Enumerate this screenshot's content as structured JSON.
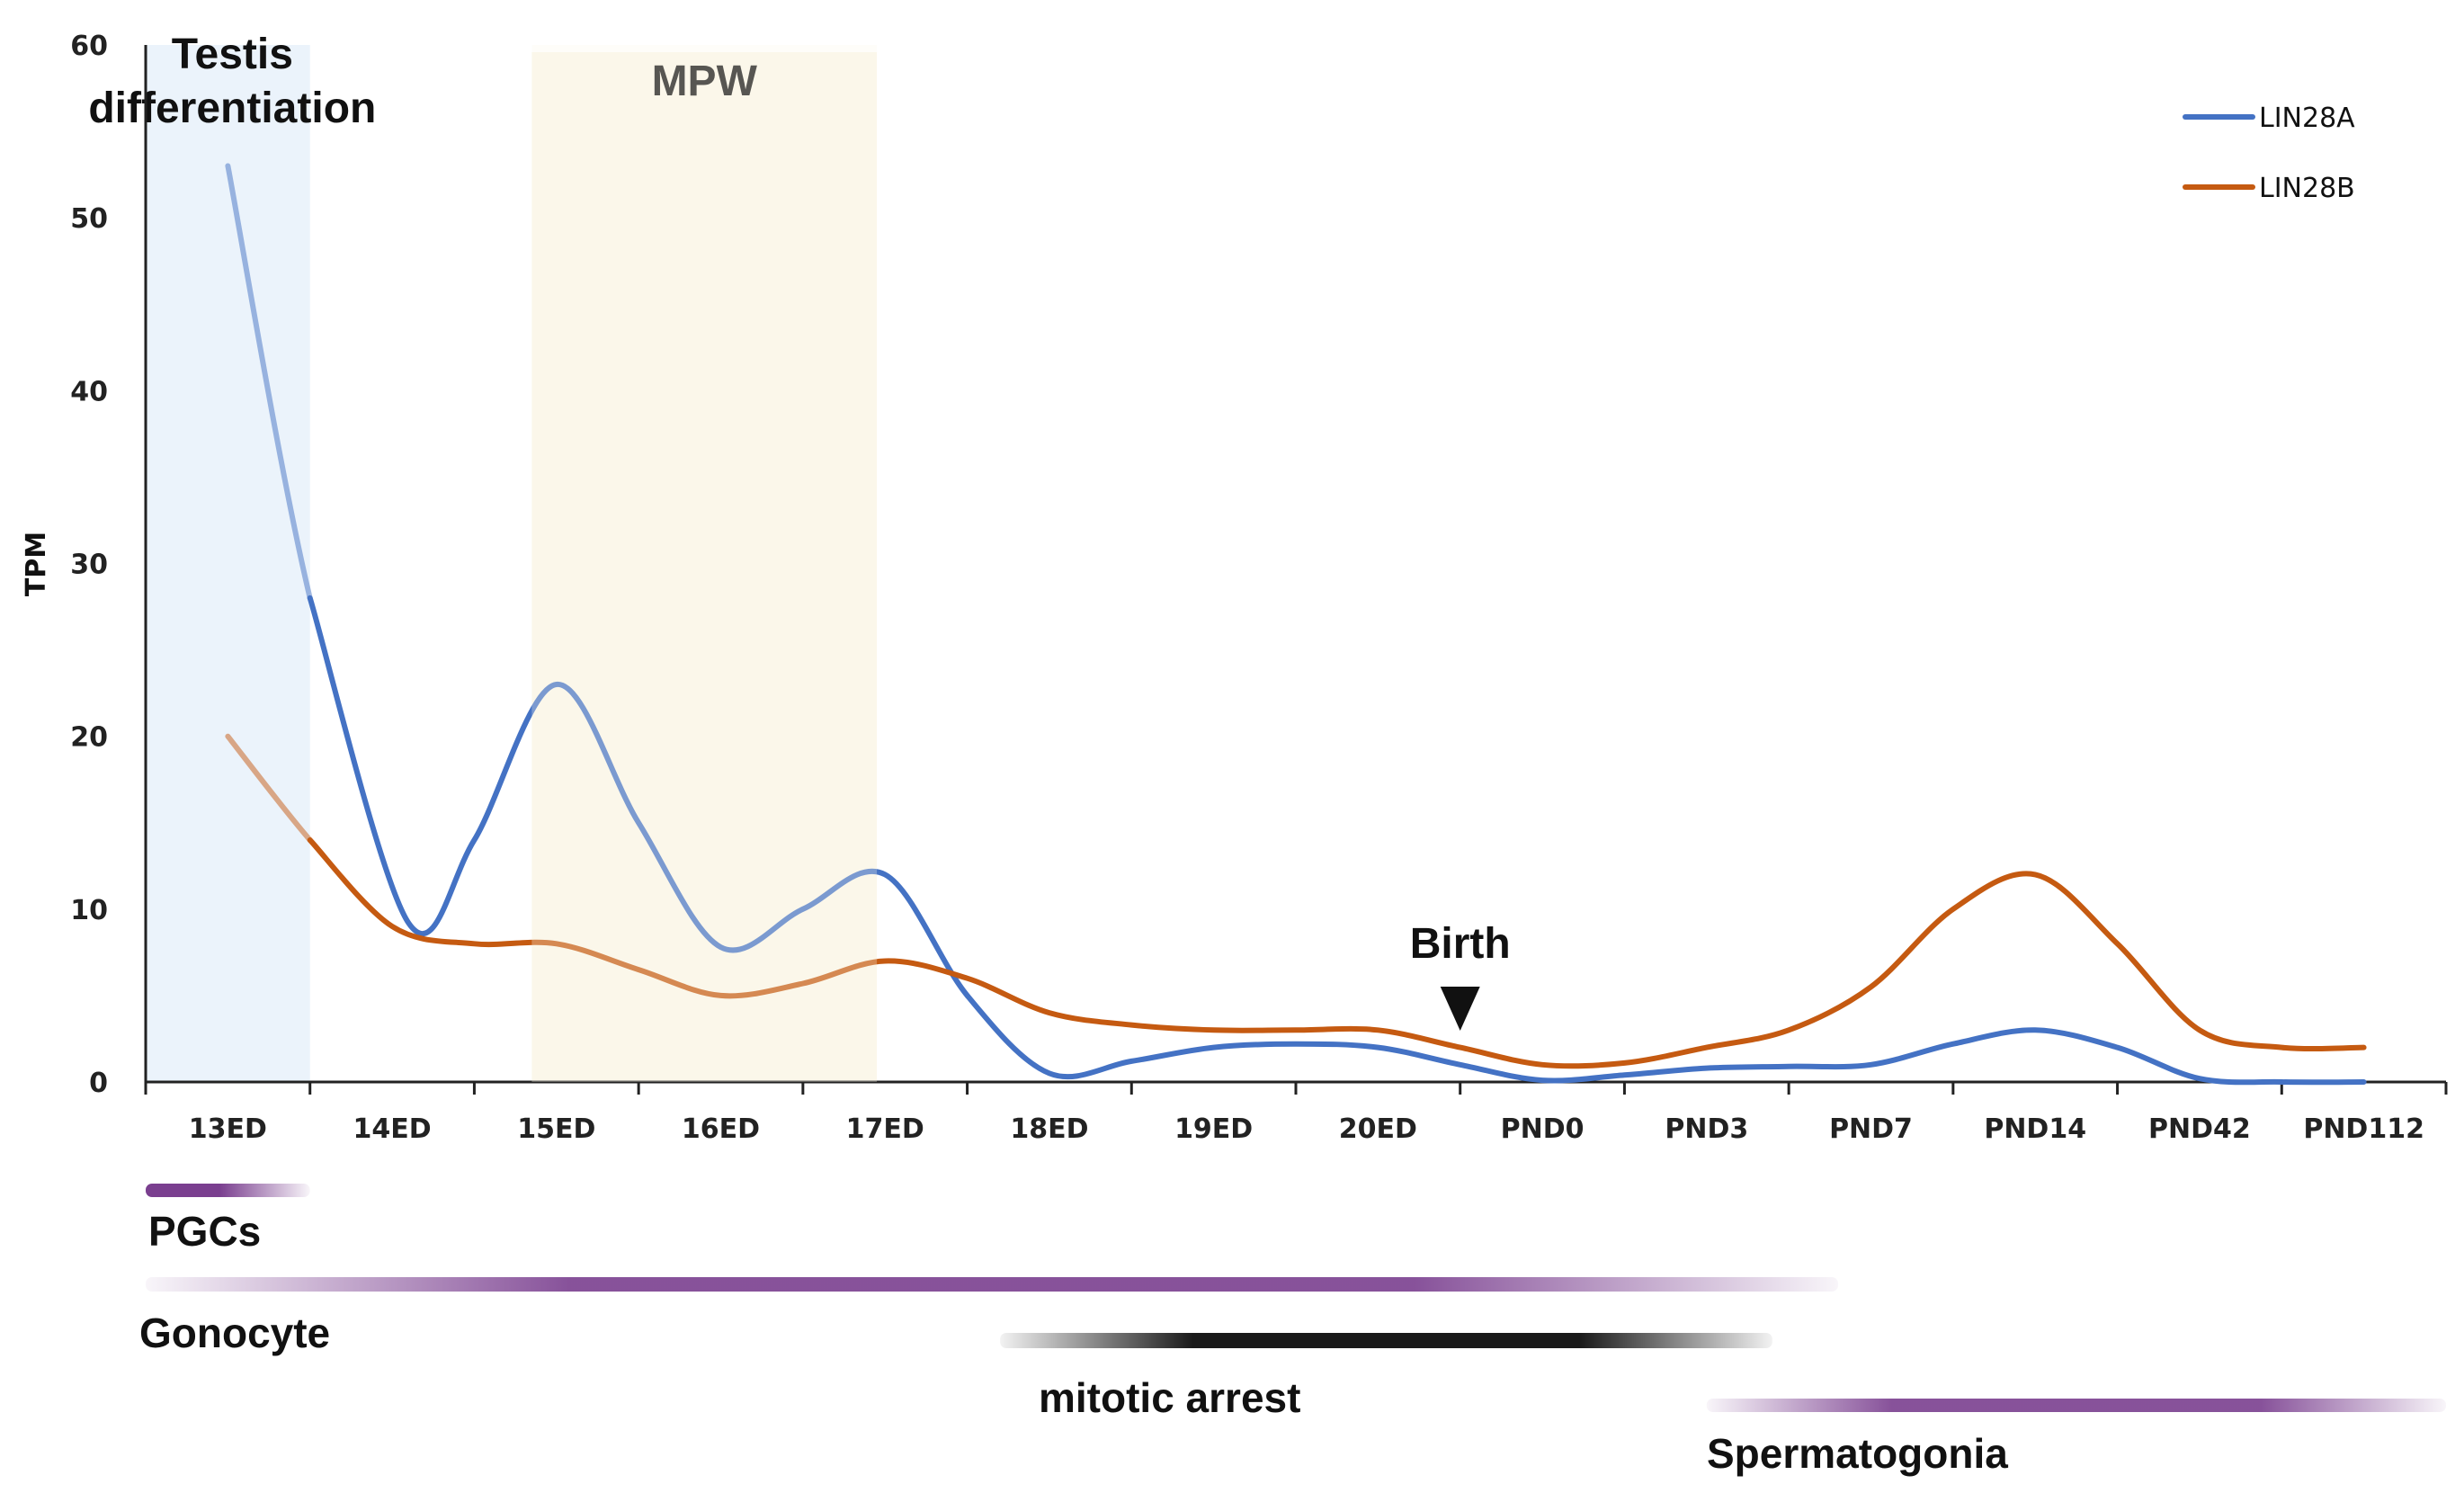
{
  "chart_data": {
    "type": "line",
    "title": "",
    "xlabel": "",
    "ylabel": "TPM",
    "ylim": [
      0,
      60
    ],
    "yticks": [
      0,
      10,
      20,
      30,
      40,
      50,
      60
    ],
    "categories": [
      "13ED",
      "14ED",
      "15ED",
      "16ED",
      "17ED",
      "18ED",
      "19ED",
      "20ED",
      "PND0",
      "PND3",
      "PND7",
      "PND14",
      "PND42",
      "PND112"
    ],
    "series": [
      {
        "name": "LIN28A",
        "color": "#4472c4",
        "points": [
          [
            0.5,
            53
          ],
          [
            1.0,
            28
          ],
          [
            1.6,
            9.2
          ],
          [
            2.0,
            14
          ],
          [
            2.5,
            23
          ],
          [
            3.0,
            15
          ],
          [
            3.5,
            7.8
          ],
          [
            4.0,
            10
          ],
          [
            4.5,
            12
          ],
          [
            5.0,
            5
          ],
          [
            5.5,
            0.5
          ],
          [
            6.0,
            1.2
          ],
          [
            6.5,
            2
          ],
          [
            7.0,
            2.2
          ],
          [
            7.5,
            2
          ],
          [
            8.0,
            1
          ],
          [
            8.5,
            0.1
          ],
          [
            9.0,
            0.4
          ],
          [
            9.5,
            0.8
          ],
          [
            10.0,
            0.9
          ],
          [
            10.5,
            1
          ],
          [
            11.0,
            2.2
          ],
          [
            11.5,
            3
          ],
          [
            12.0,
            2
          ],
          [
            12.5,
            0.2
          ],
          [
            13.0,
            0
          ],
          [
            13.5,
            0
          ]
        ]
      },
      {
        "name": "LIN28B",
        "color": "#c55a11",
        "points": [
          [
            0.5,
            20
          ],
          [
            1.0,
            14
          ],
          [
            1.5,
            9
          ],
          [
            2.0,
            8
          ],
          [
            2.5,
            8
          ],
          [
            3.0,
            6.5
          ],
          [
            3.5,
            5
          ],
          [
            4.0,
            5.7
          ],
          [
            4.5,
            7
          ],
          [
            5.0,
            6
          ],
          [
            5.5,
            4
          ],
          [
            6.0,
            3.3
          ],
          [
            6.5,
            3
          ],
          [
            7.0,
            3
          ],
          [
            7.5,
            3
          ],
          [
            8.0,
            2
          ],
          [
            8.5,
            1
          ],
          [
            9.0,
            1.1
          ],
          [
            9.5,
            2
          ],
          [
            10.0,
            3
          ],
          [
            10.5,
            5.5
          ],
          [
            11.0,
            10
          ],
          [
            11.5,
            12
          ],
          [
            12.0,
            8
          ],
          [
            12.5,
            3
          ],
          [
            13.0,
            2
          ],
          [
            13.5,
            2
          ]
        ]
      }
    ],
    "shaded_regions": [
      {
        "label_lines": [
          "Testis",
          "differentiation"
        ],
        "x_range": [
          0,
          1
        ],
        "color": "#ebf3fb"
      },
      {
        "label_lines": [
          "MPW"
        ],
        "x_range": [
          2.35,
          4.45
        ],
        "color": "#fbf7ea"
      }
    ],
    "annotations": [
      {
        "text": "Birth",
        "x": 8.0,
        "y": 7.5,
        "marker": "down-triangle"
      }
    ],
    "legend": {
      "position": "top-right",
      "entries": [
        "LIN28A",
        "LIN28B"
      ]
    },
    "stages": [
      {
        "label": "PGCs",
        "x_range": [
          0,
          1
        ],
        "color": "#7a3f8f"
      },
      {
        "label": "Gonocyte",
        "x_range": [
          0,
          10.3
        ],
        "color": "#7a3f8f"
      },
      {
        "label": "mitotic arrest",
        "x_range": [
          5.2,
          9.9
        ],
        "color": "#000000"
      },
      {
        "label": "Spermatogonia",
        "x_range": [
          9.5,
          14
        ],
        "color": "#7a3f8f"
      }
    ]
  }
}
